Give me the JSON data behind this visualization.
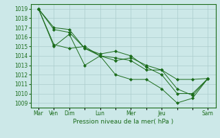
{
  "title": "",
  "xlabel": "Pression niveau de la mer( hPa )",
  "ylabel": "",
  "bg_color": "#cce8e8",
  "grid_color": "#aacccc",
  "line_color": "#1a6b1a",
  "marker_color": "#1a6b1a",
  "ylim": [
    1008.5,
    1019.5
  ],
  "yticks": [
    1009,
    1010,
    1011,
    1012,
    1013,
    1014,
    1015,
    1016,
    1017,
    1018,
    1019
  ],
  "xtick_labels": [
    "Mar",
    "Ven",
    "Dim",
    "",
    "Lun",
    "",
    "Mer",
    "",
    "Jeu",
    "",
    "",
    "Sam"
  ],
  "xtick_positions": [
    0,
    1,
    2,
    3,
    4,
    5,
    6,
    7,
    8,
    9,
    10,
    11
  ],
  "series": [
    [
      1019.0,
      1016.8,
      1016.5,
      1014.8,
      1014.0,
      1013.5,
      1013.8,
      1013.0,
      1012.5,
      1011.5,
      1011.5,
      1011.6
    ],
    [
      1019.0,
      1015.0,
      1016.3,
      1013.0,
      1014.0,
      1012.0,
      1011.5,
      1011.5,
      1010.5,
      1009.0,
      1009.5,
      1011.6
    ],
    [
      1019.0,
      1017.0,
      1016.8,
      1014.8,
      1014.2,
      1014.5,
      1014.0,
      1012.8,
      1012.0,
      1010.0,
      1010.0,
      1011.6
    ],
    [
      1019.0,
      1015.2,
      1014.8,
      1015.0,
      1014.0,
      1013.8,
      1013.5,
      1012.5,
      1012.5,
      1010.5,
      1009.8,
      1011.6
    ]
  ]
}
